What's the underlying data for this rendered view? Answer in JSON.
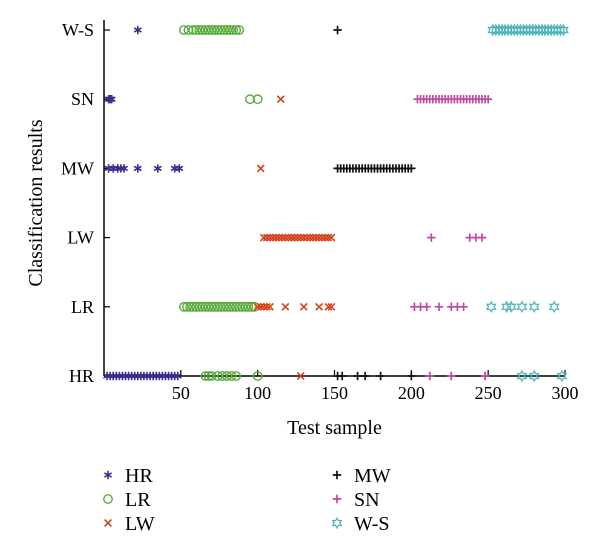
{
  "chart_data": {
    "type": "scatter",
    "xlabel": "Test sample",
    "ylabel": "Classification results",
    "xlim": [
      0,
      300
    ],
    "xticks": [
      50,
      100,
      150,
      200,
      250,
      300
    ],
    "categories": [
      "HR",
      "LR",
      "LW",
      "MW",
      "SN",
      "W-S"
    ],
    "grid": false,
    "legend_position": "bottom",
    "series": [
      {
        "name": "HR",
        "marker": "asterisk",
        "color": "#3a2f8c",
        "points": [
          [
            22,
            6
          ],
          [
            3,
            5
          ],
          [
            4,
            5
          ],
          [
            5,
            5
          ],
          [
            3,
            4
          ],
          [
            6,
            4
          ],
          [
            9,
            4
          ],
          [
            11,
            4
          ],
          [
            13,
            4
          ],
          [
            22,
            4
          ],
          [
            35,
            4
          ],
          [
            46,
            4
          ],
          [
            49,
            4
          ],
          [
            2,
            1
          ],
          [
            4,
            1
          ],
          [
            6,
            1
          ],
          [
            8,
            1
          ],
          [
            10,
            1
          ],
          [
            12,
            1
          ],
          [
            14,
            1
          ],
          [
            16,
            1
          ],
          [
            18,
            1
          ],
          [
            20,
            1
          ],
          [
            22,
            1
          ],
          [
            24,
            1
          ],
          [
            26,
            1
          ],
          [
            28,
            1
          ],
          [
            30,
            1
          ],
          [
            32,
            1
          ],
          [
            34,
            1
          ],
          [
            36,
            1
          ],
          [
            38,
            1
          ],
          [
            40,
            1
          ],
          [
            42,
            1
          ],
          [
            44,
            1
          ],
          [
            46,
            1
          ],
          [
            48,
            1
          ]
        ]
      },
      {
        "name": "LR",
        "marker": "circle",
        "color": "#5aab3c",
        "points": [
          [
            52,
            6
          ],
          [
            55,
            6
          ],
          [
            58,
            6
          ],
          [
            60,
            6
          ],
          [
            62,
            6
          ],
          [
            64,
            6
          ],
          [
            66,
            6
          ],
          [
            68,
            6
          ],
          [
            70,
            6
          ],
          [
            72,
            6
          ],
          [
            74,
            6
          ],
          [
            76,
            6
          ],
          [
            78,
            6
          ],
          [
            80,
            6
          ],
          [
            82,
            6
          ],
          [
            84,
            6
          ],
          [
            86,
            6
          ],
          [
            88,
            6
          ],
          [
            95,
            5
          ],
          [
            100,
            5
          ],
          [
            52,
            2
          ],
          [
            54,
            2
          ],
          [
            56,
            2
          ],
          [
            58,
            2
          ],
          [
            60,
            2
          ],
          [
            62,
            2
          ],
          [
            64,
            2
          ],
          [
            66,
            2
          ],
          [
            68,
            2
          ],
          [
            70,
            2
          ],
          [
            72,
            2
          ],
          [
            74,
            2
          ],
          [
            76,
            2
          ],
          [
            78,
            2
          ],
          [
            80,
            2
          ],
          [
            82,
            2
          ],
          [
            84,
            2
          ],
          [
            86,
            2
          ],
          [
            88,
            2
          ],
          [
            90,
            2
          ],
          [
            92,
            2
          ],
          [
            94,
            2
          ],
          [
            96,
            2
          ],
          [
            98,
            2
          ],
          [
            66,
            1
          ],
          [
            68,
            1
          ],
          [
            70,
            1
          ],
          [
            74,
            1
          ],
          [
            77,
            1
          ],
          [
            80,
            1
          ],
          [
            83,
            1
          ],
          [
            86,
            1
          ],
          [
            100,
            1
          ]
        ]
      },
      {
        "name": "LW",
        "marker": "x",
        "color": "#d2441c",
        "points": [
          [
            115,
            5
          ],
          [
            102,
            4
          ],
          [
            104,
            3
          ],
          [
            106,
            3
          ],
          [
            108,
            3
          ],
          [
            110,
            3
          ],
          [
            112,
            3
          ],
          [
            114,
            3
          ],
          [
            116,
            3
          ],
          [
            118,
            3
          ],
          [
            120,
            3
          ],
          [
            122,
            3
          ],
          [
            124,
            3
          ],
          [
            126,
            3
          ],
          [
            128,
            3
          ],
          [
            130,
            3
          ],
          [
            132,
            3
          ],
          [
            134,
            3
          ],
          [
            136,
            3
          ],
          [
            138,
            3
          ],
          [
            140,
            3
          ],
          [
            142,
            3
          ],
          [
            144,
            3
          ],
          [
            146,
            3
          ],
          [
            148,
            3
          ],
          [
            100,
            2
          ],
          [
            102,
            2
          ],
          [
            104,
            2
          ],
          [
            106,
            2
          ],
          [
            108,
            2
          ],
          [
            118,
            2
          ],
          [
            130,
            2
          ],
          [
            140,
            2
          ],
          [
            146,
            2
          ],
          [
            148,
            2
          ],
          [
            128,
            1
          ]
        ]
      },
      {
        "name": "MW",
        "marker": "plus",
        "color": "#111111",
        "points": [
          [
            152,
            6
          ],
          [
            152,
            4
          ],
          [
            154,
            4
          ],
          [
            156,
            4
          ],
          [
            158,
            4
          ],
          [
            160,
            4
          ],
          [
            162,
            4
          ],
          [
            164,
            4
          ],
          [
            166,
            4
          ],
          [
            168,
            4
          ],
          [
            170,
            4
          ],
          [
            172,
            4
          ],
          [
            174,
            4
          ],
          [
            176,
            4
          ],
          [
            178,
            4
          ],
          [
            180,
            4
          ],
          [
            182,
            4
          ],
          [
            184,
            4
          ],
          [
            186,
            4
          ],
          [
            188,
            4
          ],
          [
            190,
            4
          ],
          [
            192,
            4
          ],
          [
            194,
            4
          ],
          [
            196,
            4
          ],
          [
            198,
            4
          ],
          [
            200,
            4
          ],
          [
            152,
            1
          ],
          [
            155,
            1
          ],
          [
            165,
            1
          ],
          [
            170,
            1
          ],
          [
            180,
            1
          ],
          [
            200,
            1
          ]
        ]
      },
      {
        "name": "SN",
        "marker": "plus",
        "color": "#c04aa0",
        "points": [
          [
            204,
            5
          ],
          [
            206,
            5
          ],
          [
            208,
            5
          ],
          [
            210,
            5
          ],
          [
            212,
            5
          ],
          [
            214,
            5
          ],
          [
            216,
            5
          ],
          [
            218,
            5
          ],
          [
            220,
            5
          ],
          [
            222,
            5
          ],
          [
            224,
            5
          ],
          [
            226,
            5
          ],
          [
            228,
            5
          ],
          [
            230,
            5
          ],
          [
            232,
            5
          ],
          [
            234,
            5
          ],
          [
            236,
            5
          ],
          [
            238,
            5
          ],
          [
            240,
            5
          ],
          [
            242,
            5
          ],
          [
            244,
            5
          ],
          [
            246,
            5
          ],
          [
            248,
            5
          ],
          [
            250,
            5
          ],
          [
            213,
            3
          ],
          [
            238,
            3
          ],
          [
            242,
            3
          ],
          [
            246,
            3
          ],
          [
            202,
            2
          ],
          [
            206,
            2
          ],
          [
            210,
            2
          ],
          [
            218,
            2
          ],
          [
            226,
            2
          ],
          [
            230,
            2
          ],
          [
            234,
            2
          ],
          [
            212,
            1
          ],
          [
            226,
            1
          ],
          [
            248,
            1
          ]
        ]
      },
      {
        "name": "W-S",
        "marker": "star",
        "color": "#4fb3b8",
        "points": [
          [
            253,
            6
          ],
          [
            255,
            6
          ],
          [
            257,
            6
          ],
          [
            259,
            6
          ],
          [
            261,
            6
          ],
          [
            263,
            6
          ],
          [
            265,
            6
          ],
          [
            267,
            6
          ],
          [
            269,
            6
          ],
          [
            271,
            6
          ],
          [
            273,
            6
          ],
          [
            275,
            6
          ],
          [
            277,
            6
          ],
          [
            279,
            6
          ],
          [
            281,
            6
          ],
          [
            283,
            6
          ],
          [
            285,
            6
          ],
          [
            287,
            6
          ],
          [
            289,
            6
          ],
          [
            291,
            6
          ],
          [
            293,
            6
          ],
          [
            295,
            6
          ],
          [
            297,
            6
          ],
          [
            299,
            6
          ],
          [
            252,
            2
          ],
          [
            262,
            2
          ],
          [
            265,
            2
          ],
          [
            272,
            2
          ],
          [
            280,
            2
          ],
          [
            293,
            2
          ],
          [
            272,
            1
          ],
          [
            280,
            1
          ],
          [
            298,
            1
          ]
        ]
      }
    ]
  }
}
